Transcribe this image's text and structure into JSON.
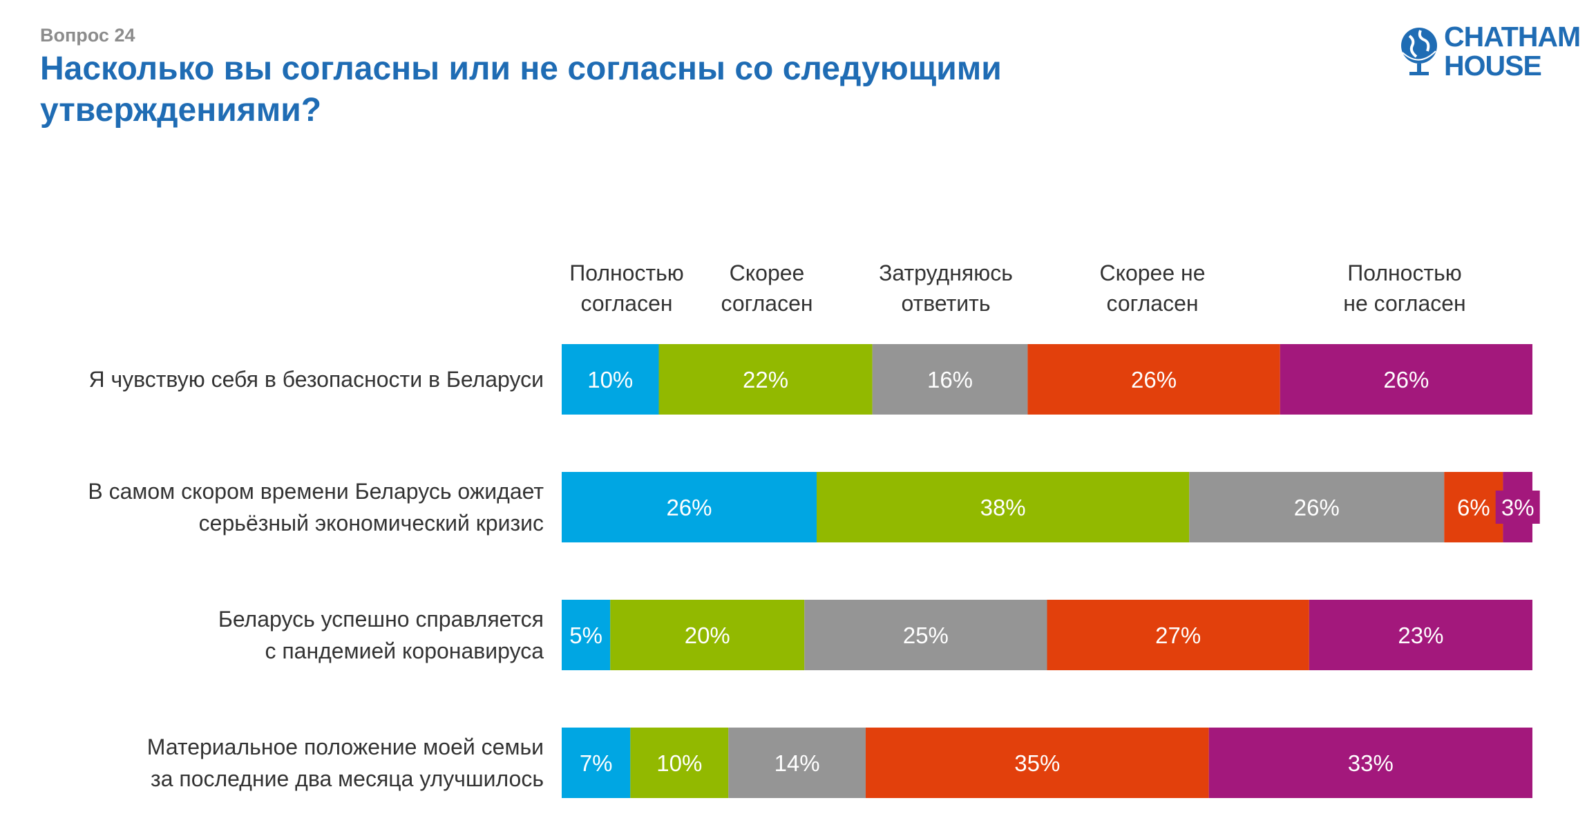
{
  "header": {
    "question_number": "Вопрос 24",
    "title": "Насколько вы согласны или не согласны со следующими утверждениями?",
    "logo_line1": "CHATHAM",
    "logo_line2": "HOUSE"
  },
  "chart_data": {
    "type": "bar",
    "orientation": "horizontal-stacked-100",
    "legend_position": "top",
    "series": [
      {
        "name": "Полностью согласен",
        "label_lines": [
          "Полностью",
          "согласен"
        ],
        "color": "#00a6e3",
        "values": [
          10,
          26,
          5,
          7
        ],
        "labels": [
          "10%",
          "26%",
          "5%",
          "7%"
        ]
      },
      {
        "name": "Скорее согласен",
        "label_lines": [
          "Скорее",
          "согласен"
        ],
        "color": "#92b900",
        "values": [
          22,
          38,
          20,
          10
        ],
        "labels": [
          "22%",
          "38%",
          "20%",
          "10%"
        ]
      },
      {
        "name": "Затрудняюсь ответить",
        "label_lines": [
          "Затрудняюсь",
          "ответить"
        ],
        "color": "#959595",
        "values": [
          16,
          26,
          25,
          14
        ],
        "labels": [
          "16%",
          "26%",
          "25%",
          "14%"
        ]
      },
      {
        "name": "Скорее не согласен",
        "label_lines": [
          "Скорее не",
          "согласен"
        ],
        "color": "#e2400c",
        "values": [
          26,
          6,
          27,
          35
        ],
        "labels": [
          "26%",
          "6%",
          "27%",
          "35%"
        ]
      },
      {
        "name": "Полностью не согласен",
        "label_lines": [
          "Полностью",
          "не согласен"
        ],
        "color": "#a3187c",
        "values": [
          26,
          3,
          23,
          33
        ],
        "labels": [
          "26%",
          "3%",
          "23%",
          "33%"
        ]
      }
    ],
    "categories": [
      {
        "lines": [
          "Я чувствую себя в безопасности в Беларуси"
        ]
      },
      {
        "lines": [
          "В самом скором времени Беларусь ожидает",
          "серьёзный экономический кризис"
        ]
      },
      {
        "lines": [
          "Беларусь успешно справляется",
          "с пандемией коронавируса"
        ]
      },
      {
        "lines": [
          "Материальное положение моей семьи",
          "за последние два месяца улучшилось"
        ]
      }
    ]
  }
}
